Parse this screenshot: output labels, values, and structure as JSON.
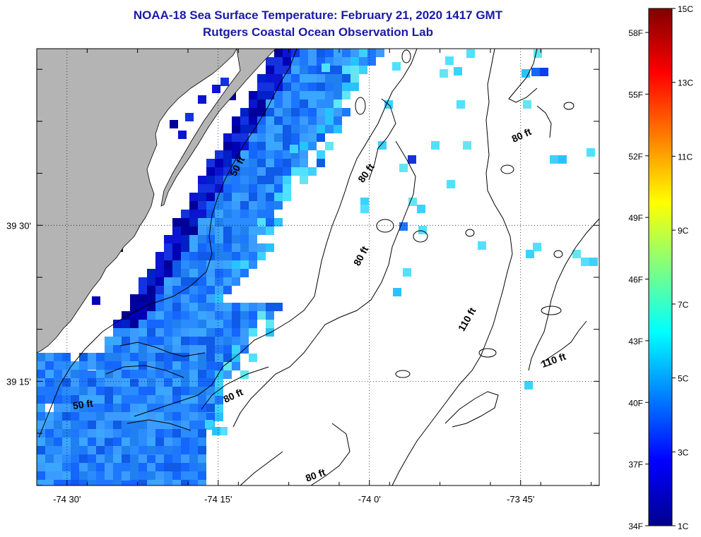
{
  "header": {
    "title": "NOAA-18 Sea Surface Temperature:  February 21, 2020 1417 GMT",
    "subtitle": "Rutgers Coastal Ocean Observation Lab"
  },
  "map": {
    "lon_range": [
      -74.55,
      -73.62
    ],
    "lat_range": [
      39.083,
      39.783
    ],
    "x_ticks": [
      {
        "lon": -74.5,
        "label": "-74 30'"
      },
      {
        "lon": -74.25,
        "label": "-74 15'"
      },
      {
        "lon": -74.0,
        "label": "-74 0'"
      },
      {
        "lon": -73.75,
        "label": "-73 45'"
      }
    ],
    "y_ticks": [
      {
        "lat": 39.5,
        "label": "39 30'"
      },
      {
        "lat": 39.25,
        "label": "39 15'"
      }
    ],
    "depth_labels": [
      "50 ft",
      "80 ft",
      "80 ft",
      "80 ft",
      "110 ft",
      "110 ft",
      "80 ft",
      "80 ft",
      "50 ft"
    ],
    "colors": {
      "land": "#b4b4b4",
      "contour": "#000000"
    }
  },
  "colorbar": {
    "celsius_labels": [
      "15C",
      "13C",
      "11C",
      "9C",
      "7C",
      "5C",
      "3C",
      "1C"
    ],
    "fahrenheit_labels": [
      "58F",
      "55F",
      "52F",
      "49F",
      "46F",
      "43F",
      "40F",
      "37F",
      "34F"
    ],
    "range_c": [
      1,
      15
    ]
  }
}
